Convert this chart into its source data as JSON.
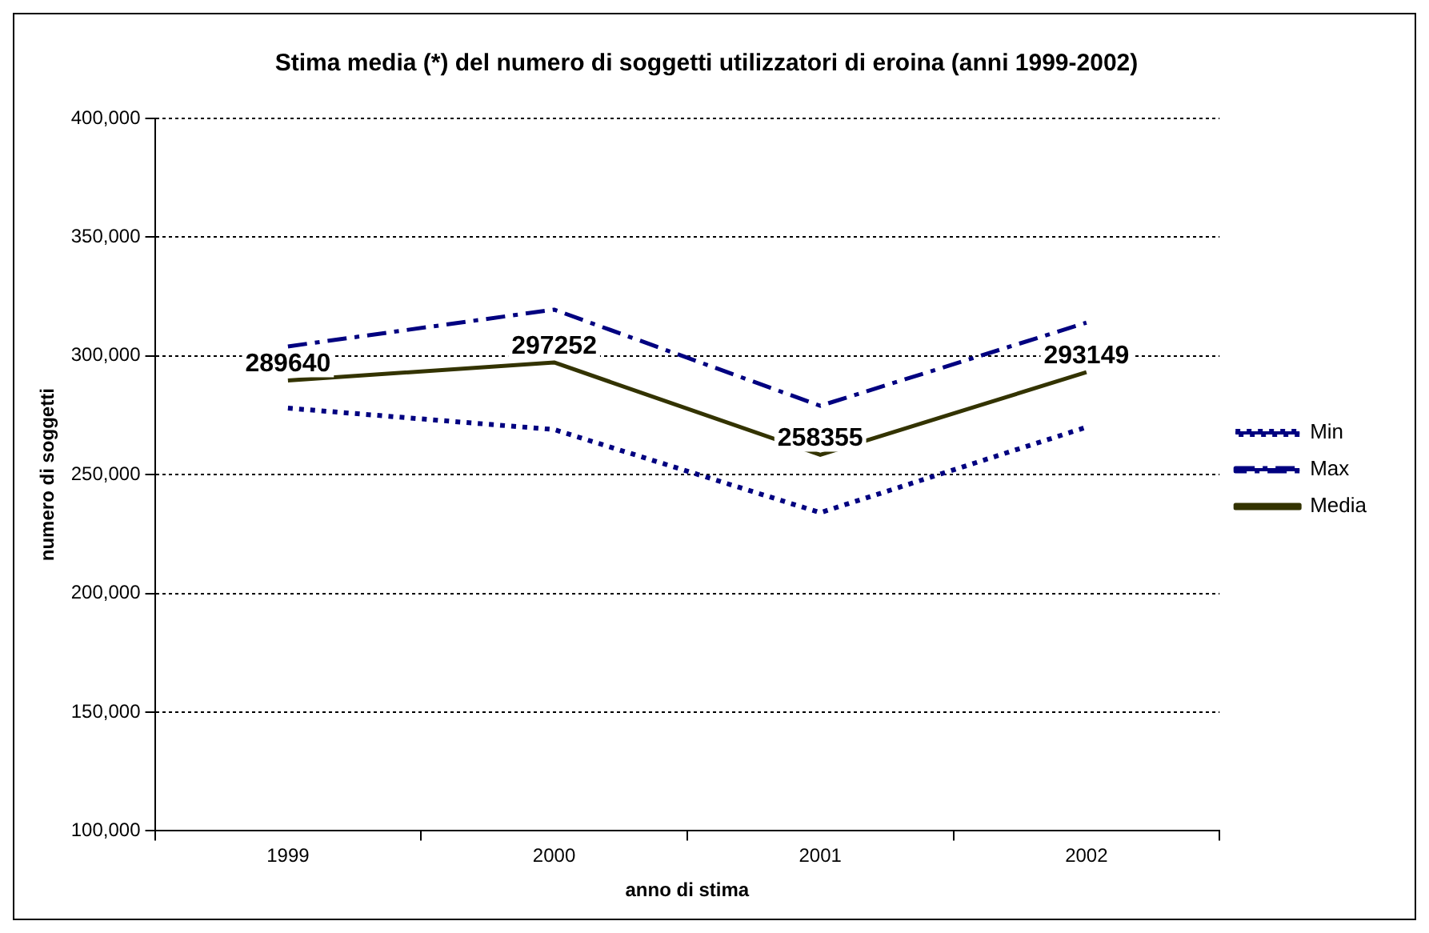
{
  "chart_data": {
    "type": "line",
    "title": "Stima media (*) del numero di soggetti utilizzatori di eroina (anni 1999-2002)",
    "xlabel": "anno di stima",
    "ylabel": "numero di soggetti",
    "categories": [
      "1999",
      "2000",
      "2001",
      "2002"
    ],
    "series": [
      {
        "name": "Min",
        "color": "#000080",
        "line_style": "dotted",
        "values": [
          278000,
          269000,
          234000,
          270000
        ]
      },
      {
        "name": "Max",
        "color": "#000080",
        "line_style": "dashed",
        "values": [
          304000,
          319500,
          279000,
          314000
        ]
      },
      {
        "name": "Media",
        "color": "#333300",
        "line_style": "solid",
        "values": [
          289640,
          297252,
          258355,
          293149
        ],
        "value_labels": [
          "289640",
          "297252",
          "258355",
          "293149"
        ]
      }
    ],
    "ylim": [
      100000,
      400000
    ],
    "yticks": [
      {
        "value": 100000,
        "label": "100,000"
      },
      {
        "value": 150000,
        "label": "150,000"
      },
      {
        "value": 200000,
        "label": "200,000"
      },
      {
        "value": 250000,
        "label": "250,000"
      },
      {
        "value": 300000,
        "label": "300,000"
      },
      {
        "value": 350000,
        "label": "350,000"
      },
      {
        "value": 400000,
        "label": "400,000"
      }
    ],
    "grid": "y",
    "legend": "right",
    "marker": "none"
  }
}
